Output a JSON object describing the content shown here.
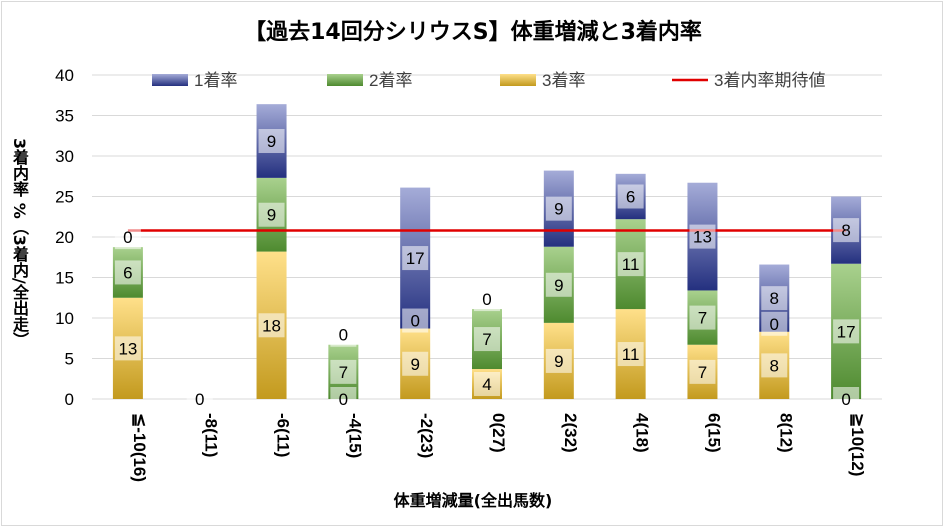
{
  "chart_data": {
    "type": "bar",
    "stacked": true,
    "title": "【過去14回分シリウスS】体重増減と3着内率",
    "xlabel": "体重増減量(全出馬数)",
    "ylabel": "3着内率 %（3着内/全出走）",
    "ylim": [
      0,
      40
    ],
    "yticks": [
      0,
      5,
      10,
      15,
      20,
      25,
      30,
      35,
      40
    ],
    "grid": true,
    "legend_position": "top",
    "categories": [
      "≦-10(16)",
      "-8(11)",
      "-6(11)",
      "-4(15)",
      "-2(23)",
      "0(27)",
      "2(32)",
      "4(18)",
      "6(15)",
      "8(12)",
      "≧10(12)"
    ],
    "series": [
      {
        "name": "3着率",
        "color": "#d4a72c",
        "values": [
          12.5,
          0,
          18.2,
          0,
          8.7,
          3.7,
          9.4,
          11.1,
          6.7,
          8.3,
          0
        ],
        "labels": [
          "13",
          "0",
          "18",
          "0",
          "9",
          "4",
          "9",
          "11",
          "7",
          "8",
          "0"
        ]
      },
      {
        "name": "2着率",
        "color": "#70ad47",
        "values": [
          6.25,
          0,
          9.1,
          6.7,
          0,
          7.4,
          9.4,
          11.1,
          6.7,
          0,
          16.7
        ],
        "labels": [
          "6",
          "",
          "9",
          "7",
          "0",
          "7",
          "9",
          "11",
          "7",
          "0",
          "17"
        ]
      },
      {
        "name": "1着率",
        "color": "#2f3f95",
        "values": [
          0,
          0,
          9.1,
          0,
          17.4,
          0,
          9.4,
          5.6,
          13.3,
          8.3,
          8.3
        ],
        "labels": [
          "0",
          "",
          "9",
          "0",
          "17",
          "0",
          "9",
          "6",
          "13",
          "8",
          "8"
        ]
      }
    ],
    "reference_line": {
      "name": "3着内率期待値",
      "color": "#e00000",
      "value": 20.8
    }
  }
}
